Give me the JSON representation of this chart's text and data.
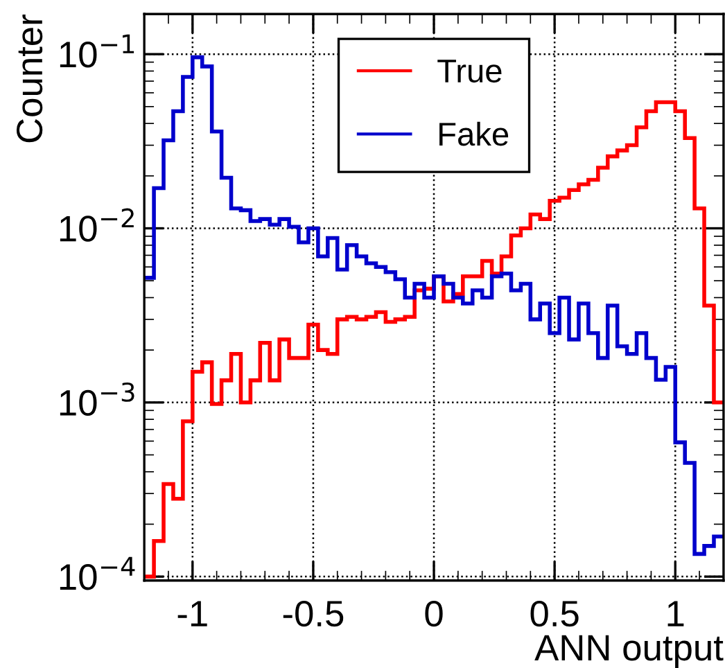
{
  "chart_data": {
    "type": "histogram",
    "xlabel": "ANN output",
    "ylabel": "Counter",
    "bins": [
      -1.2,
      -1.16,
      -1.12,
      -1.08,
      -1.04,
      -1.0,
      -0.96,
      -0.92,
      -0.88,
      -0.84,
      -0.8,
      -0.76,
      -0.72,
      -0.68,
      -0.64,
      -0.6,
      -0.56,
      -0.52,
      -0.48,
      -0.44,
      -0.4,
      -0.36,
      -0.32,
      -0.28,
      -0.24,
      -0.2,
      -0.16,
      -0.12,
      -0.08,
      -0.04,
      0.0,
      0.04,
      0.08,
      0.12,
      0.16,
      0.2,
      0.24,
      0.28,
      0.32,
      0.36,
      0.4,
      0.44,
      0.48,
      0.52,
      0.56,
      0.6,
      0.64,
      0.68,
      0.72,
      0.76,
      0.8,
      0.84,
      0.88,
      0.92,
      0.96,
      1.0,
      1.04,
      1.08,
      1.12,
      1.16,
      1.2
    ],
    "series": [
      {
        "name": "True",
        "color": "#ff0000",
        "values": [
          0.0001,
          0.00016,
          0.00034,
          0.00028,
          0.00078,
          0.0015,
          0.0017,
          0.00098,
          0.00134,
          0.0019,
          0.001,
          0.00134,
          0.0022,
          0.00134,
          0.0023,
          0.0018,
          0.0018,
          0.0028,
          0.002,
          0.0019,
          0.003,
          0.0031,
          0.003,
          0.0031,
          0.0033,
          0.0029,
          0.003,
          0.0031,
          0.0044,
          0.0045,
          0.0053,
          0.0038,
          0.0042,
          0.0053,
          0.0053,
          0.0065,
          0.0055,
          0.0069,
          0.0091,
          0.01,
          0.012,
          0.0113,
          0.0144,
          0.015,
          0.0166,
          0.0179,
          0.019,
          0.0223,
          0.0259,
          0.028,
          0.03,
          0.038,
          0.047,
          0.053,
          0.053,
          0.047,
          0.033,
          0.013,
          0.0036,
          0.001
        ]
      },
      {
        "name": "Fake",
        "color": "#0000cc",
        "values": [
          0.0052,
          0.017,
          0.032,
          0.047,
          0.074,
          0.096,
          0.085,
          0.036,
          0.0195,
          0.013,
          0.0127,
          0.011,
          0.0113,
          0.0105,
          0.0113,
          0.0102,
          0.0083,
          0.01,
          0.0069,
          0.0088,
          0.0058,
          0.008,
          0.0069,
          0.0063,
          0.006,
          0.0056,
          0.0051,
          0.004,
          0.0048,
          0.004,
          0.0053,
          0.0048,
          0.004,
          0.0037,
          0.0044,
          0.004,
          0.0053,
          0.0055,
          0.0044,
          0.0048,
          0.003,
          0.0037,
          0.0025,
          0.004,
          0.0023,
          0.0037,
          0.0025,
          0.0018,
          0.0036,
          0.0021,
          0.0019,
          0.0025,
          0.0018,
          0.00135,
          0.0016,
          0.00059,
          0.00045,
          0.000135,
          0.00015,
          0.00017
        ]
      }
    ],
    "xlim": [
      -1.2,
      1.2
    ],
    "xticks": [
      -1,
      -0.5,
      0,
      0.5,
      1
    ],
    "log": "y",
    "ylim": [
      9.5e-05,
      0.17
    ],
    "yticks": [
      {
        "value": 0.0001,
        "label": "10$^{−4}$"
      },
      {
        "value": 0.001,
        "label": "10$^{−3}$"
      },
      {
        "value": 0.01,
        "label": "10$^{−2}$"
      },
      {
        "value": 0.1,
        "label": "10$^{−1}$"
      }
    ],
    "grid": true,
    "legend": "top"
  }
}
